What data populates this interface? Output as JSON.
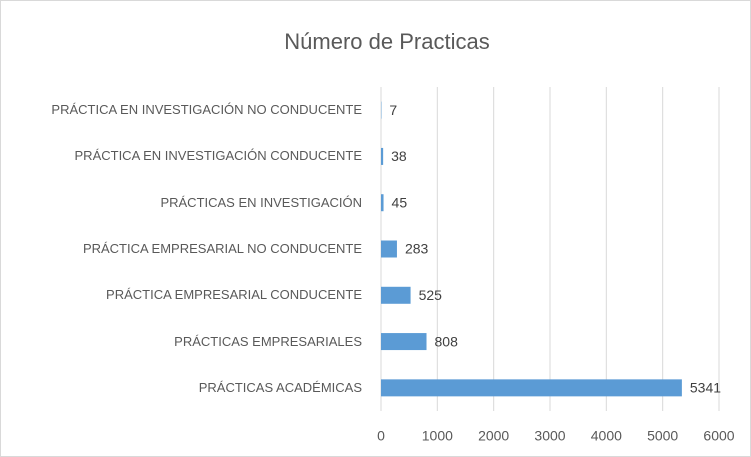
{
  "chart_data": {
    "type": "hbar",
    "title": "Número de Practicas",
    "categories": [
      "PRÁCTICA EN INVESTIGACIÓN NO CONDUCENTE",
      "PRÁCTICA EN INVESTIGACIÓN CONDUCENTE",
      "PRÁCTICAS EN INVESTIGACIÓN",
      "PRÁCTICA EMPRESARIAL NO CONDUCENTE",
      "PRÁCTICA EMPRESARIAL CONDUCENTE",
      "PRÁCTICAS EMPRESARIALES",
      "PRÁCTICAS ACADÉMICAS"
    ],
    "values": [
      7,
      38,
      45,
      283,
      525,
      808,
      5341
    ],
    "color": "#5b9bd5",
    "xlim": [
      0,
      6000
    ],
    "xticks": [
      0,
      1000,
      2000,
      3000,
      4000,
      5000,
      6000
    ],
    "grid": true
  }
}
